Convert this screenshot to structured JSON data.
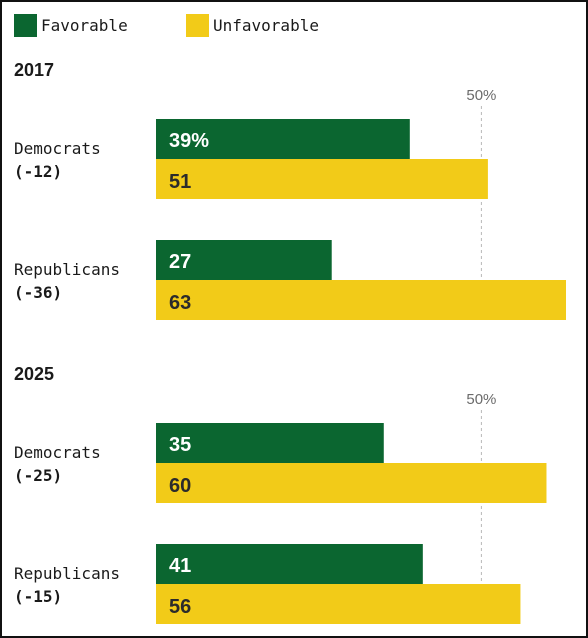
{
  "chart_data": {
    "type": "bar",
    "orientation": "horizontal",
    "legend": [
      {
        "name": "Favorable",
        "color": "#0b6630"
      },
      {
        "name": "Unfavorable",
        "color": "#f2cb18"
      }
    ],
    "reference_line": {
      "value": 50,
      "label": "50%"
    },
    "xlim": [
      0,
      63
    ],
    "panels": [
      {
        "year": "2017",
        "groups": [
          {
            "name": "Democrats",
            "diff": "(-12)",
            "favorable": 39,
            "favorable_label": "39%",
            "unfavorable": 51,
            "unfavorable_label": "51"
          },
          {
            "name": "Republicans",
            "diff": "(-36)",
            "favorable": 27,
            "favorable_label": "27",
            "unfavorable": 63,
            "unfavorable_label": "63"
          }
        ]
      },
      {
        "year": "2025",
        "groups": [
          {
            "name": "Democrats",
            "diff": "(-25)",
            "favorable": 35,
            "favorable_label": "35",
            "unfavorable": 60,
            "unfavorable_label": "60"
          },
          {
            "name": "Republicans",
            "diff": "(-15)",
            "favorable": 41,
            "favorable_label": "41",
            "unfavorable": 56,
            "unfavorable_label": "56"
          }
        ]
      }
    ]
  }
}
